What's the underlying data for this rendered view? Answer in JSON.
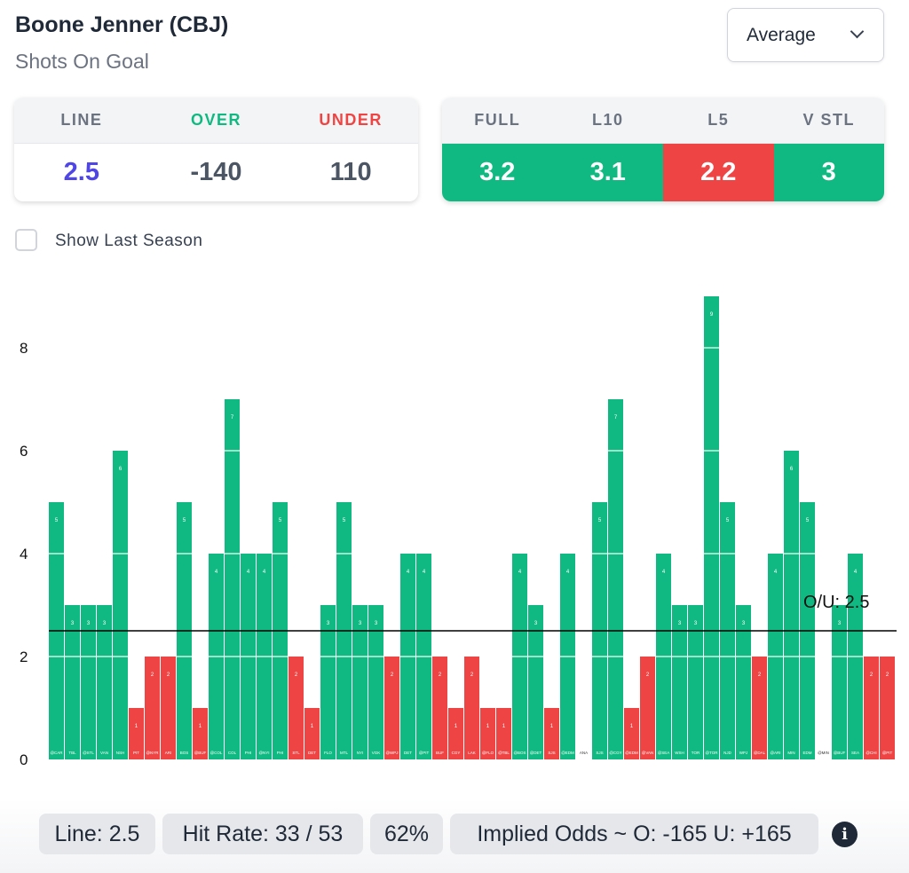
{
  "header": {
    "title": "Boone Jenner (CBJ)",
    "subtitle": "Shots On Goal",
    "select_value": "Average"
  },
  "odds_card": {
    "headers": [
      "LINE",
      "OVER",
      "UNDER"
    ],
    "values": [
      "2.5",
      "-140",
      "110"
    ]
  },
  "avg_card": {
    "headers": [
      "FULL",
      "L10",
      "L5",
      "V STL"
    ],
    "values": [
      "3.2",
      "3.1",
      "2.2",
      "3"
    ],
    "status": [
      "over",
      "over",
      "under",
      "over"
    ]
  },
  "show_last_season": {
    "label": "Show Last Season",
    "checked": false
  },
  "colors": {
    "over": "#10b981",
    "under": "#ef4444",
    "line_value": "#4f46e5",
    "over_text": "#10b981",
    "under_text": "#ef4444"
  },
  "chart_data": {
    "type": "bar",
    "categories": [
      "@CAR",
      "TBL",
      "@STL",
      "VAN",
      "NSH",
      "PIT",
      "@NYR",
      "ARI",
      "BOS",
      "@BUF",
      "@COL",
      "COL",
      "PHI",
      "@NYI",
      "PHI",
      "STL",
      "DET",
      "FLO",
      "MTL",
      "NYI",
      "VGK",
      "@WPJ",
      "DET",
      "@PIT",
      "BUF",
      "CGY",
      "LAK",
      "@FLO",
      "@TBL",
      "@BOS",
      "@DET",
      "SJS",
      "@EDM",
      "ANA",
      "SJS",
      "@CGY",
      "@EDM",
      "@VAN",
      "@SEA",
      "WSH",
      "TOR",
      "@TOR",
      "NJD",
      "WPJ",
      "@DAL",
      "@ARI",
      "MIN",
      "EDM",
      "@MIN",
      "@BUF",
      "SEA",
      "@CHI",
      "@PIT"
    ],
    "values": [
      5,
      3,
      3,
      3,
      6,
      1,
      2,
      2,
      5,
      1,
      4,
      7,
      4,
      4,
      5,
      2,
      1,
      3,
      5,
      3,
      3,
      2,
      4,
      4,
      2,
      1,
      2,
      1,
      1,
      4,
      3,
      1,
      4,
      0,
      5,
      7,
      1,
      2,
      4,
      3,
      3,
      9,
      5,
      3,
      2,
      4,
      6,
      5,
      0,
      3,
      4,
      2,
      2
    ],
    "yticks": [
      0,
      2,
      4,
      6,
      8
    ],
    "ylim": [
      0,
      9
    ],
    "line": 2.5,
    "line_label": "O/U: 2.5"
  },
  "footer": {
    "line": "Line: 2.5",
    "hit_rate": "Hit Rate: 33 / 53",
    "pct": "62%",
    "implied": "Implied Odds ~ O: -165 U: +165"
  }
}
